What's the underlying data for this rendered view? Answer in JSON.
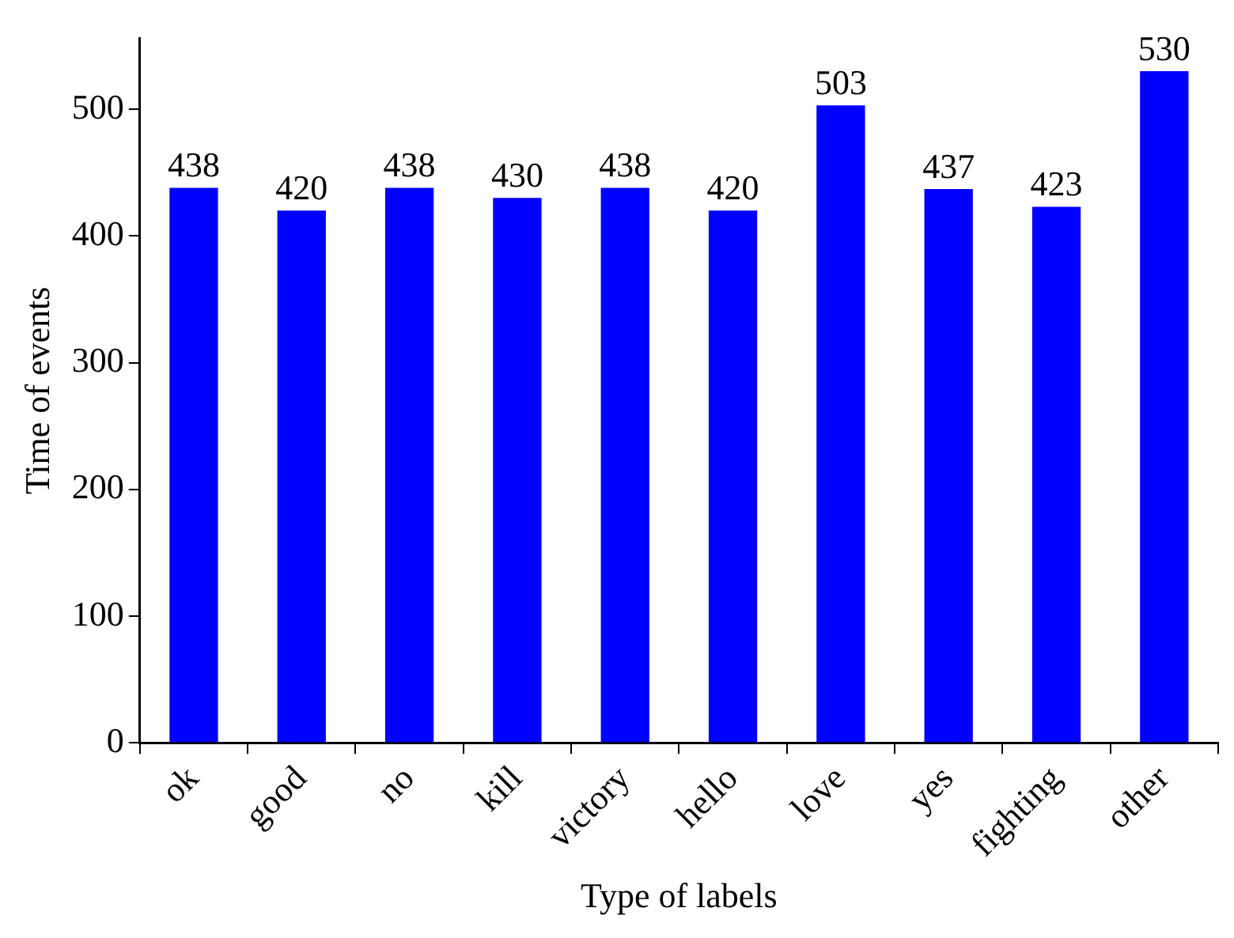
{
  "chart_data": {
    "type": "bar",
    "xlabel": "Type of labels",
    "ylabel": "Time of events",
    "categories": [
      "ok",
      "good",
      "no",
      "kill",
      "victory",
      "hello",
      "love",
      "yes",
      "fighting",
      "other"
    ],
    "values": [
      438,
      420,
      438,
      430,
      438,
      420,
      503,
      437,
      423,
      530
    ],
    "color": "#0000ff",
    "ylim": [
      0,
      556
    ],
    "yticks": [
      0,
      100,
      200,
      300,
      400,
      500
    ],
    "grid": false,
    "legend": false,
    "data_labels": true
  }
}
